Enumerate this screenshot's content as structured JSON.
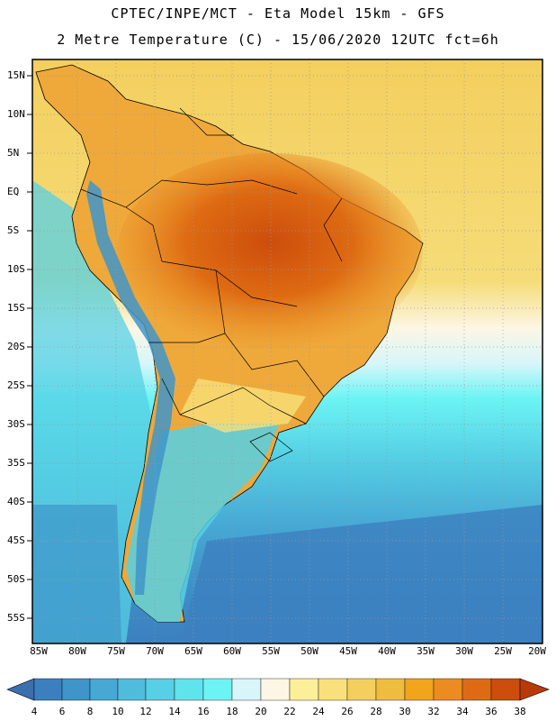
{
  "title": {
    "line1": "CPTEC/INPE/MCT -  Eta Model 15km - GFS",
    "line2": "2 Metre Temperature (C) - 15/06/2020 12UTC fct=6h"
  },
  "latitude_labels": [
    "15N",
    "10N",
    "5N",
    "EQ",
    "5S",
    "10S",
    "15S",
    "20S",
    "25S",
    "30S",
    "35S",
    "40S",
    "45S",
    "50S",
    "55S"
  ],
  "longitude_labels": [
    "85W",
    "80W",
    "75W",
    "70W",
    "65W",
    "60W",
    "55W",
    "50W",
    "45W",
    "40W",
    "35W",
    "30W",
    "25W",
    "20W"
  ],
  "colorbar": {
    "labels": [
      "4",
      "6",
      "8",
      "10",
      "12",
      "14",
      "16",
      "18",
      "20",
      "22",
      "24",
      "26",
      "28",
      "30",
      "32",
      "34",
      "36",
      "38"
    ],
    "colors": [
      "#3b6fae",
      "#3c7fbf",
      "#3f95c9",
      "#47a8d4",
      "#4fbcdc",
      "#56d0e4",
      "#5fe3ec",
      "#6cf4f4",
      "#d8f6fa",
      "#fdf6e4",
      "#fcef9a",
      "#f9e07a",
      "#f4cf5e",
      "#efbd3d",
      "#f0a51a",
      "#ea8c1f",
      "#de6b13",
      "#cc4d0c",
      "#b83a08"
    ]
  },
  "map": {
    "region": "South America",
    "ocean_warm": "#f4cf5e",
    "ocean_cool": "#56d0e4",
    "ocean_cold": "#3c7fbf",
    "land_hot": "#d9661a",
    "land_warm": "#efa93a",
    "andes_cold": "#4fbcdc"
  }
}
